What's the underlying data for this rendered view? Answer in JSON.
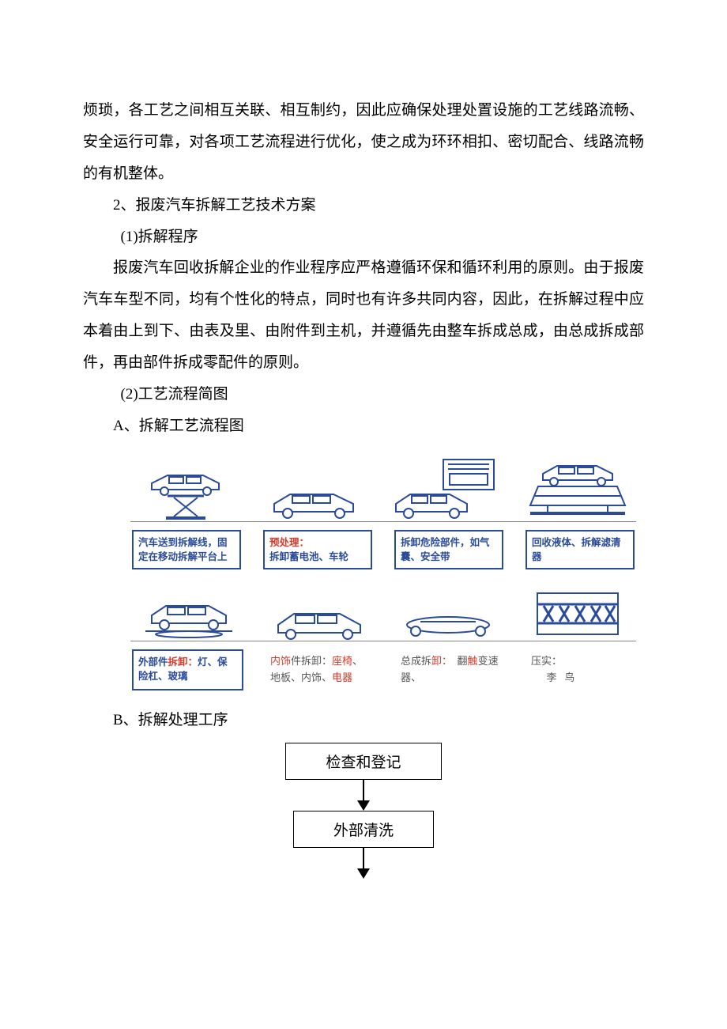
{
  "paragraphs": {
    "p1": "烦琐，各工艺之间相互关联、相互制约，因此应确保处理处置设施的工艺线路流畅、安全运行可靠，对各项工艺流程进行优化，使之成为环环相扣、密切配合、线路流畅的有机整体。",
    "p2": "2、报废汽车拆解工艺技术方案",
    "p3": "(1)拆解程序",
    "p4": "报废汽车回收拆解企业的作业程序应严格遵循环保和循环利用的原则。由于报废汽车车型不同，均有个性化的特点，同时也有许多共同内容，因此，在拆解过程中应本着由上到下、由表及里、由附件到主机，并遵循先由整车拆成总成，由总成拆成部件，再由部件拆成零配件的原则。",
    "p5": "(2)工艺流程简图",
    "p6": "A、拆解工艺流程图",
    "p7": "B、拆解处理工序"
  },
  "diagram1": {
    "colors": {
      "box_border": "#2a4b9a",
      "text_blue": "#2a4b9a",
      "text_red": "#d63a2a",
      "text_black": "#555555",
      "rail": "#888888"
    },
    "row1_labels": [
      {
        "parts": [
          {
            "t": "汽车送到拆解线，固定在移动拆解平台上",
            "c": "blue"
          }
        ]
      },
      {
        "parts": [
          {
            "t": "预处理：",
            "c": "red"
          },
          {
            "t": "\n拆卸蓄电池、车轮",
            "c": "blue"
          }
        ]
      },
      {
        "parts": [
          {
            "t": "拆卸危险部件，如气囊、安全带",
            "c": "blue"
          }
        ]
      },
      {
        "parts": [
          {
            "t": "回收液体、拆解滤清器",
            "c": "blue"
          }
        ]
      }
    ],
    "row2_labels": [
      {
        "boxed": true,
        "parts": [
          {
            "t": "外部件",
            "c": "blue"
          },
          {
            "t": "拆卸：",
            "c": "red"
          },
          {
            "t": "灯、保险杠、玻璃",
            "c": "blue"
          }
        ]
      },
      {
        "boxed": false,
        "parts": [
          {
            "t": "内饰",
            "c": "red"
          },
          {
            "t": "件拆卸：",
            "c": "black"
          },
          {
            "t": "座椅",
            "c": "red"
          },
          {
            "t": "、地板、内饰、",
            "c": "black"
          },
          {
            "t": "电器",
            "c": "red"
          }
        ]
      },
      {
        "boxed": false,
        "parts": [
          {
            "t": "总成拆",
            "c": "black"
          },
          {
            "t": "卸：",
            "c": "red"
          },
          {
            "t": "  翻",
            "c": "black"
          },
          {
            "t": "触",
            "c": "red"
          },
          {
            "t": "变速器、",
            "c": "black"
          }
        ]
      },
      {
        "boxed": false,
        "parts": [
          {
            "t": "压实：",
            "c": "black"
          },
          {
            "t": "\n      李   鸟",
            "c": "black"
          }
        ]
      }
    ]
  },
  "flow": {
    "box1": "检查和登记",
    "box2": "外部清洗"
  }
}
